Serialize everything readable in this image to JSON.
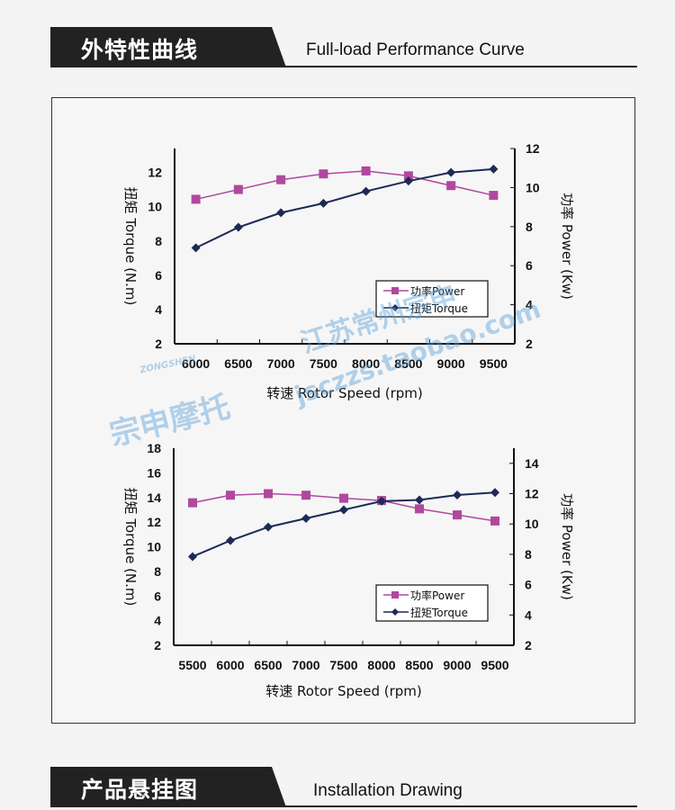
{
  "section1": {
    "title_cn": "外特性曲线",
    "title_en": "Full-load Performance Curve"
  },
  "section2": {
    "title_cn": "产品悬挂图",
    "title_en": "Installation Drawing"
  },
  "watermarks": {
    "logo": "ZONGSHEN",
    "brand": "宗申摩托",
    "shop_cn": "江苏常州宗申",
    "shop_url": "jsczzs.taobao.com"
  },
  "colors": {
    "power": "#b0489e",
    "torque": "#1c2a55",
    "axis": "#111111"
  },
  "chart_data": [
    {
      "type": "line",
      "xlabel": "转速 Rotor Speed (rpm)",
      "ylabel": "扭矩 Torque (N.m)",
      "y2label": "功率 Power (Kw)",
      "categories": [
        "6000",
        "6500",
        "7000",
        "7500",
        "8000",
        "8500",
        "9000",
        "9500"
      ],
      "ylim": [
        2,
        13.4
      ],
      "yticks": [
        2,
        4,
        6,
        8,
        10,
        12
      ],
      "y2lim": [
        2,
        12
      ],
      "y2ticks": [
        2,
        4,
        6,
        8,
        10,
        12
      ],
      "legend": "center-right",
      "grid": false,
      "series": [
        {
          "name": "功率Power",
          "axis": "right",
          "marker": "square",
          "color": "#b0489e",
          "values": [
            9.4,
            9.9,
            10.4,
            10.7,
            10.85,
            10.6,
            10.1,
            9.6
          ]
        },
        {
          "name": "扭矩Torque",
          "axis": "left",
          "marker": "diamond",
          "color": "#1c2a55",
          "values": [
            7.6,
            8.8,
            9.65,
            10.2,
            10.9,
            11.5,
            12.0,
            12.2
          ]
        }
      ]
    },
    {
      "type": "line",
      "xlabel": "转速 Rotor Speed (rpm)",
      "ylabel": "扭矩 Torque (N.m)",
      "y2label": "功率 Power (Kw)",
      "categories": [
        "5500",
        "6000",
        "6500",
        "7000",
        "7500",
        "8000",
        "8500",
        "9000",
        "9500"
      ],
      "ylim": [
        2,
        18
      ],
      "yticks": [
        2,
        4,
        6,
        8,
        10,
        12,
        14,
        16,
        18
      ],
      "y2lim": [
        2,
        15
      ],
      "y2ticks": [
        2,
        4,
        6,
        8,
        10,
        12,
        14
      ],
      "legend": "center-right",
      "grid": false,
      "series": [
        {
          "name": "功率Power",
          "axis": "right",
          "marker": "square",
          "color": "#b0489e",
          "values": [
            11.4,
            11.9,
            12.0,
            11.9,
            11.7,
            11.55,
            11.0,
            10.6,
            10.2
          ]
        },
        {
          "name": "扭矩Torque",
          "axis": "left",
          "marker": "diamond",
          "color": "#1c2a55",
          "values": [
            9.2,
            10.5,
            11.6,
            12.3,
            13.0,
            13.7,
            13.8,
            14.2,
            14.4
          ]
        }
      ]
    }
  ]
}
